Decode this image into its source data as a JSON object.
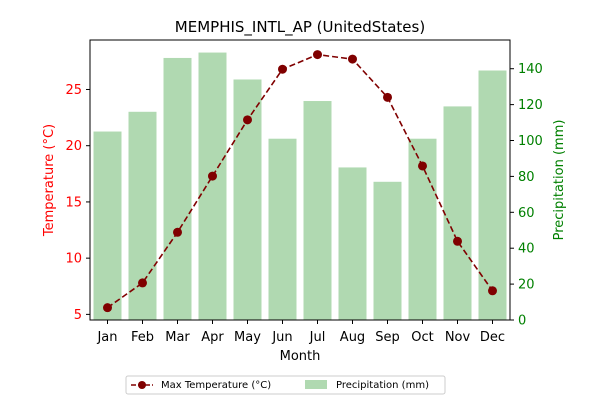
{
  "chart_data": {
    "type": "bar+line",
    "title": "MEMPHIS_INTL_AP (UnitedStates)",
    "xlabel": "Month",
    "ylabel_left": "Temperature (°C)",
    "ylabel_right": "Precipitation (mm)",
    "categories": [
      "Jan",
      "Feb",
      "Mar",
      "Apr",
      "May",
      "Jun",
      "Jul",
      "Aug",
      "Sep",
      "Oct",
      "Nov",
      "Dec"
    ],
    "y_left_ticks": [
      "5",
      "10",
      "15",
      "20",
      "25"
    ],
    "y_right_ticks": [
      "0",
      "20",
      "40",
      "60",
      "80",
      "100",
      "120",
      "140"
    ],
    "ylim_left": [
      4.5,
      29.4
    ],
    "ylim_right": [
      0,
      156
    ],
    "series": [
      {
        "name": "Max Temperature (°C)",
        "type": "line",
        "axis": "left",
        "color": "#800000",
        "values": [
          5.6,
          7.8,
          12.3,
          17.3,
          22.3,
          26.8,
          28.1,
          27.7,
          24.3,
          18.2,
          11.5,
          7.1
        ]
      },
      {
        "name": "Precipitation (mm)",
        "type": "bar",
        "axis": "right",
        "color": "#b0d9b1",
        "values": [
          105,
          116,
          146,
          149,
          134,
          101,
          122,
          85,
          77,
          101,
          119,
          139
        ]
      }
    ],
    "colors": {
      "left_axis": "#ff0000",
      "right_axis": "#008000"
    },
    "legend_position": "bottom-center",
    "grid": false
  }
}
